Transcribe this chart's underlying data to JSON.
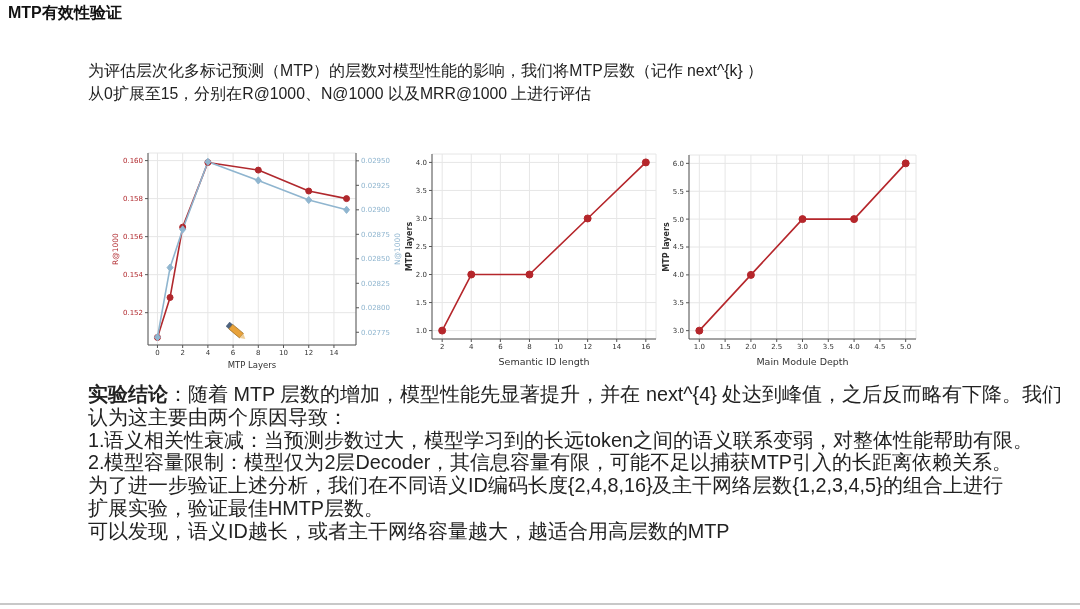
{
  "chart_data": [
    {
      "type": "other",
      "title": "MTP有效性验证",
      "annotations": [
        "为评估层次化多标记预测（MTP）的层数对模型性能的影响，我们将MTP层数（记作 next^{k} ）",
        "从0扩展至15，分别在R@1000、N@1000 以及MRR@1000 上进行评估"
      ]
    },
    {
      "type": "line",
      "xlabel": "MTP Layers",
      "ylabel": "R@1000",
      "y2label": "N@1000",
      "x": [
        0,
        1,
        2,
        4,
        8,
        12,
        15
      ],
      "series": [
        {
          "color": "#b0282d",
          "marker": "circle",
          "values": [
            0.1507,
            0.1528,
            0.1565,
            0.1599,
            0.1595,
            0.1584,
            0.158
          ]
        },
        {
          "color": "#8fb5cf",
          "marker": "diamond",
          "axis": "y2",
          "values": [
            0.0277,
            0.02841,
            0.0288,
            0.02949,
            0.0293,
            0.0291,
            0.029
          ]
        }
      ],
      "xlim": [
        -0.75,
        15.75
      ],
      "xticks": [
        0,
        2,
        4,
        6,
        8,
        10,
        12,
        14
      ],
      "ylim": [
        0.1503,
        0.1604
      ],
      "yticks": [
        0.152,
        0.154,
        0.156,
        0.158,
        {
          "value": 0.16,
          "label": "0.160"
        }
      ],
      "y2lim": [
        0.02762,
        0.02958
      ],
      "y2ticks": [
        0.02775,
        {
          "value": 0.028,
          "label": "0.02800"
        },
        0.02825,
        {
          "value": 0.0285,
          "label": "0.02850"
        },
        0.02875,
        {
          "value": 0.029,
          "label": "0.02900"
        },
        0.02925,
        {
          "value": 0.0295,
          "label": "0.02950"
        }
      ],
      "grid": true,
      "line_style": "solid"
    },
    {
      "type": "line",
      "xlabel": "Semantic ID length",
      "ylabel": "MTP layers",
      "x": [
        2,
        4,
        8,
        12,
        16
      ],
      "series": [
        {
          "color": "#b5262b",
          "values": [
            1,
            2,
            2,
            3,
            4
          ]
        }
      ],
      "marker": "circle",
      "xlim": [
        1.3,
        16.7
      ],
      "xticks": [
        2,
        4,
        6,
        8,
        10,
        12,
        14,
        16
      ],
      "ylim": [
        0.85,
        4.15
      ],
      "yticks": [
        {
          "value": 1,
          "label": "1.0"
        },
        1.5,
        {
          "value": 2,
          "label": "2.0"
        },
        2.5,
        {
          "value": 3,
          "label": "3.0"
        },
        3.5,
        {
          "value": 4,
          "label": "4.0"
        }
      ],
      "grid": true,
      "line_style": "solid"
    },
    {
      "type": "line",
      "xlabel": "Main Module Depth",
      "ylabel": "MTP layers",
      "x": [
        1,
        2,
        3,
        4,
        5
      ],
      "series": [
        {
          "color": "#b5262b",
          "values": [
            3,
            4,
            5,
            5,
            6
          ]
        }
      ],
      "marker": "circle",
      "xlim": [
        0.8,
        5.2
      ],
      "xticks": [
        {
          "value": 1,
          "label": "1.0"
        },
        1.5,
        {
          "value": 2,
          "label": "2.0"
        },
        2.5,
        {
          "value": 3,
          "label": "3.0"
        },
        3.5,
        {
          "value": 4,
          "label": "4.0"
        },
        4.5,
        {
          "value": 5,
          "label": "5.0"
        }
      ],
      "ylim": [
        2.85,
        6.15
      ],
      "yticks": [
        {
          "value": 3,
          "label": "3.0"
        },
        3.5,
        {
          "value": 4,
          "label": "4.0"
        },
        4.5,
        {
          "value": 5,
          "label": "5.0"
        },
        5.5,
        {
          "value": 6,
          "label": "6.0"
        }
      ],
      "grid": true,
      "line_style": "solid"
    },
    {
      "type": "other",
      "annotations": [
        "实验结论：随着 MTP 层数的增加，模型性能先显著提升，并在 next^{4} 处达到峰值，之后反而略有下降。我们认为这主要由两个原因导致：",
        "1.语义相关性衰减：当预测步数过大，模型学习到的长远token之间的语义联系变弱，对整体性能帮助有限。",
        "2.模型容量限制：模型仅为2层Decoder，其信息容量有限，可能不足以捕获MTP引入的长距离依赖关系。",
        "为了进一步验证上述分析，我们在不同语义ID编码长度{2,4,8,16}及主干网络层数{1,2,3,4,5}的组合上进行",
        "扩展实验，验证最佳HMTP层数。",
        "可以发现，语义ID越长，或者主干网络容量越大，越适合用高层数的MTP"
      ]
    }
  ]
}
